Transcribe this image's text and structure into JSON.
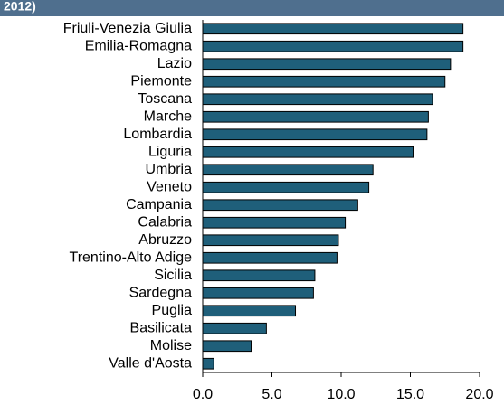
{
  "chart_data": {
    "type": "hbar",
    "title": "2012)",
    "categories": [
      "Friuli-Venezia Giulia",
      "Emilia-Romagna",
      "Lazio",
      "Piemonte",
      "Toscana",
      "Marche",
      "Lombardia",
      "Liguria",
      "Umbria",
      "Veneto",
      "Campania",
      "Calabria",
      "Abruzzo",
      "Trentino-Alto Adige",
      "Sicilia",
      "Sardegna",
      "Puglia",
      "Basilicata",
      "Molise",
      "Valle d'Aosta"
    ],
    "values": [
      18.8,
      18.8,
      17.9,
      17.5,
      16.6,
      16.3,
      16.2,
      15.2,
      12.3,
      12.0,
      11.2,
      10.3,
      9.8,
      9.7,
      8.1,
      8.0,
      6.7,
      4.6,
      3.5,
      0.8
    ],
    "color": "#1f5f7a",
    "xlim": [
      0,
      20
    ],
    "xticks": [
      {
        "value": 0,
        "label": "0.0"
      },
      {
        "value": 5,
        "label": "5.0"
      },
      {
        "value": 10,
        "label": "10.0"
      },
      {
        "value": 15,
        "label": "15.0"
      },
      {
        "value": 20,
        "label": "20.0"
      }
    ]
  }
}
